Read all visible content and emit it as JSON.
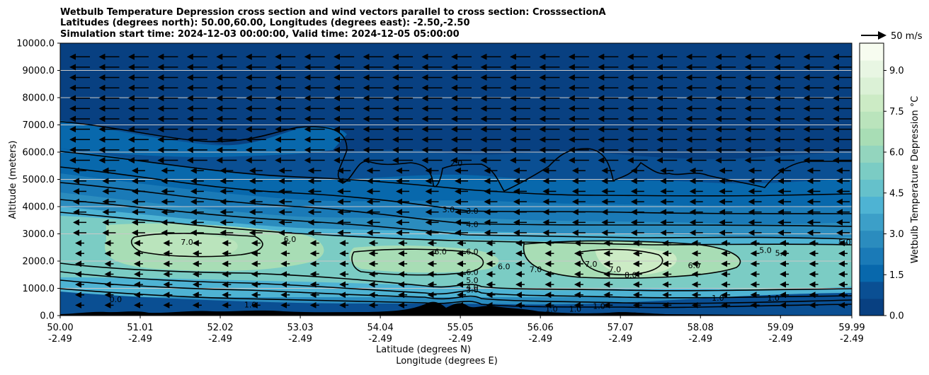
{
  "chart_data": {
    "type": "heatmap",
    "title": [
      "Wetbulb Temperature Depression cross section and wind vectors parallel to cross section: CrosssectionA",
      "Latitudes (degrees north): 50.00,60.00, Longitudes (degrees east): -2.50,-2.50",
      "Simulation start time: 2024-12-03 00:00:00, Valid time: 2024-12-05 05:00:00"
    ],
    "ylabel": "Altitude (meters)",
    "xlabel": "Latitude (degrees N)",
    "xlabel2": "Longitude (degrees E)",
    "xlim": [
      50.0,
      59.99
    ],
    "ylim": [
      0,
      10000
    ],
    "grid": "horizontal",
    "x_ticks": [
      {
        "lat": "50.00",
        "lon": "-2.49",
        "value": 50.0
      },
      {
        "lat": "51.01",
        "lon": "-2.49",
        "value": 51.01
      },
      {
        "lat": "52.02",
        "lon": "-2.49",
        "value": 52.02
      },
      {
        "lat": "53.03",
        "lon": "-2.49",
        "value": 53.03
      },
      {
        "lat": "54.04",
        "lon": "-2.49",
        "value": 54.04
      },
      {
        "lat": "55.05",
        "lon": "-2.49",
        "value": 55.05
      },
      {
        "lat": "56.06",
        "lon": "-2.49",
        "value": 56.06
      },
      {
        "lat": "57.07",
        "lon": "-2.49",
        "value": 57.07
      },
      {
        "lat": "58.08",
        "lon": "-2.49",
        "value": 58.08
      },
      {
        "lat": "59.09",
        "lon": "-2.49",
        "value": 59.09
      },
      {
        "lat": "59.99",
        "lon": "-2.49",
        "value": 59.99
      }
    ],
    "y_ticks": [
      "0.0",
      "1000.0",
      "2000.0",
      "3000.0",
      "4000.0",
      "5000.0",
      "6000.0",
      "7000.0",
      "8000.0",
      "9000.0",
      "10000.0"
    ],
    "y_tick_values": [
      0,
      1000,
      2000,
      3000,
      4000,
      5000,
      6000,
      7000,
      8000,
      9000,
      10000
    ],
    "colorbar": {
      "label": "Wetbulb Temperature Depression °C",
      "range": [
        0.0,
        10.0
      ],
      "tick_labels": [
        "0.0",
        "1.5",
        "3.0",
        "4.5",
        "6.0",
        "7.5",
        "9.0"
      ],
      "tick_values": [
        0.0,
        1.5,
        3.0,
        4.5,
        6.0,
        7.5,
        9.0
      ],
      "colors": [
        "#084081",
        "#0a4f93",
        "#0868ac",
        "#1a7ab7",
        "#2b8cbe",
        "#3c9fc8",
        "#4eb3d3",
        "#65c1cb",
        "#7bccc4",
        "#93d5be",
        "#a8ddb5",
        "#bae4bc",
        "#ccebc5",
        "#dbf1d6",
        "#e8f6e3",
        "#f7fcf0"
      ]
    },
    "quiver_key": {
      "label": "50 m/s",
      "value": 50
    },
    "wind": {
      "direction": "toward lower latitude",
      "approx_speed_ms": 40
    },
    "contour_labels": [
      {
        "text": "2.0",
        "lat": 55.0,
        "alt": 5600
      },
      {
        "text": "3.0",
        "lat": 54.9,
        "alt": 3900
      },
      {
        "text": "3.0",
        "lat": 55.2,
        "alt": 3850
      },
      {
        "text": "4.0",
        "lat": 55.2,
        "alt": 3350
      },
      {
        "text": "7.0",
        "lat": 51.6,
        "alt": 2700
      },
      {
        "text": "6.0",
        "lat": 52.9,
        "alt": 2800
      },
      {
        "text": "6.0",
        "lat": 54.8,
        "alt": 2350
      },
      {
        "text": "6.0",
        "lat": 55.2,
        "alt": 2350
      },
      {
        "text": "6.0",
        "lat": 55.2,
        "alt": 1600
      },
      {
        "text": "5.0",
        "lat": 55.2,
        "alt": 1300
      },
      {
        "text": "4.0",
        "lat": 55.2,
        "alt": 1050
      },
      {
        "text": "3.0",
        "lat": 55.2,
        "alt": 950
      },
      {
        "text": "6.0",
        "lat": 55.6,
        "alt": 1800
      },
      {
        "text": "7.0",
        "lat": 56.0,
        "alt": 1700
      },
      {
        "text": "7.0",
        "lat": 56.7,
        "alt": 1900
      },
      {
        "text": "7.0",
        "lat": 57.0,
        "alt": 1700
      },
      {
        "text": "8.0",
        "lat": 57.2,
        "alt": 1500
      },
      {
        "text": "6.0",
        "lat": 58.0,
        "alt": 1850
      },
      {
        "text": "5.0",
        "lat": 58.9,
        "alt": 2400
      },
      {
        "text": "5.0",
        "lat": 59.1,
        "alt": 2300
      },
      {
        "text": "5.0",
        "lat": 59.9,
        "alt": 2700
      },
      {
        "text": "1.0",
        "lat": 52.4,
        "alt": 400
      },
      {
        "text": "0.0",
        "lat": 50.7,
        "alt": 600
      },
      {
        "text": "1.0",
        "lat": 56.2,
        "alt": 250
      },
      {
        "text": "1.0",
        "lat": 56.5,
        "alt": 250
      },
      {
        "text": "1.0",
        "lat": 56.8,
        "alt": 350
      },
      {
        "text": "1.0",
        "lat": 58.3,
        "alt": 650
      },
      {
        "text": "1.0",
        "lat": 59.0,
        "alt": 650
      }
    ]
  }
}
